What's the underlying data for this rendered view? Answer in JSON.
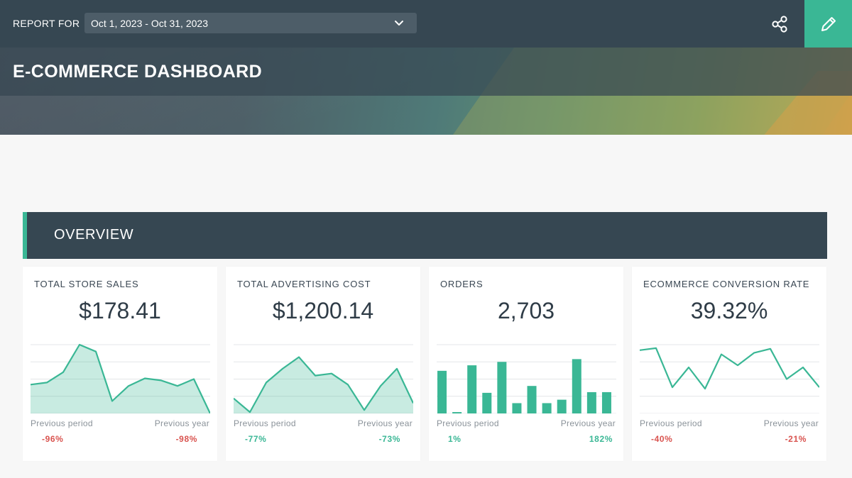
{
  "header": {
    "report_for_label": "REPORT FOR",
    "date_range": "Oct 1, 2023 - Oct 31, 2023",
    "title": "E-COMMERCE DASHBOARD",
    "accent_color": "#3ab795",
    "bar_color": "#364752"
  },
  "section": {
    "title": "OVERVIEW"
  },
  "cards": [
    {
      "title": "TOTAL STORE SALES",
      "value": "$178.41",
      "prev_period_label": "Previous period",
      "prev_year_label": "Previous year",
      "prev_period": "-96%",
      "prev_year": "-98%",
      "prev_period_status": "neg",
      "prev_year_status": "neg"
    },
    {
      "title": "TOTAL ADVERTISING COST",
      "value": "$1,200.14",
      "prev_period_label": "Previous period",
      "prev_year_label": "Previous year",
      "prev_period": "-77%",
      "prev_year": "-73%",
      "prev_period_status": "pos",
      "prev_year_status": "pos"
    },
    {
      "title": "ORDERS",
      "value": "2,703",
      "prev_period_label": "Previous period",
      "prev_year_label": "Previous year",
      "prev_period": "1%",
      "prev_year": "182%",
      "prev_period_status": "pos",
      "prev_year_status": "pos"
    },
    {
      "title": "ECOMMERCE CONVERSION RATE",
      "value": "39.32%",
      "prev_period_label": "Previous period",
      "prev_year_label": "Previous year",
      "prev_period": "-40%",
      "prev_year": "-21%",
      "prev_period_status": "neg",
      "prev_year_status": "neg"
    }
  ],
  "chart_data": [
    {
      "type": "area",
      "values": [
        42,
        45,
        60,
        100,
        90,
        18,
        40,
        51,
        48,
        40,
        50,
        0
      ],
      "ylim": [
        0,
        100
      ]
    },
    {
      "type": "area",
      "values": [
        22,
        2,
        45,
        65,
        82,
        55,
        58,
        42,
        5,
        40,
        65,
        15
      ],
      "ylim": [
        0,
        100
      ]
    },
    {
      "type": "bar",
      "values": [
        62,
        2,
        70,
        30,
        75,
        15,
        40,
        15,
        20,
        79,
        31,
        31
      ],
      "ylim": [
        0,
        100
      ]
    },
    {
      "type": "line",
      "values": [
        92,
        95,
        38,
        67,
        36,
        86,
        70,
        88,
        94,
        50,
        67,
        38
      ],
      "ylim": [
        0,
        100
      ]
    }
  ]
}
